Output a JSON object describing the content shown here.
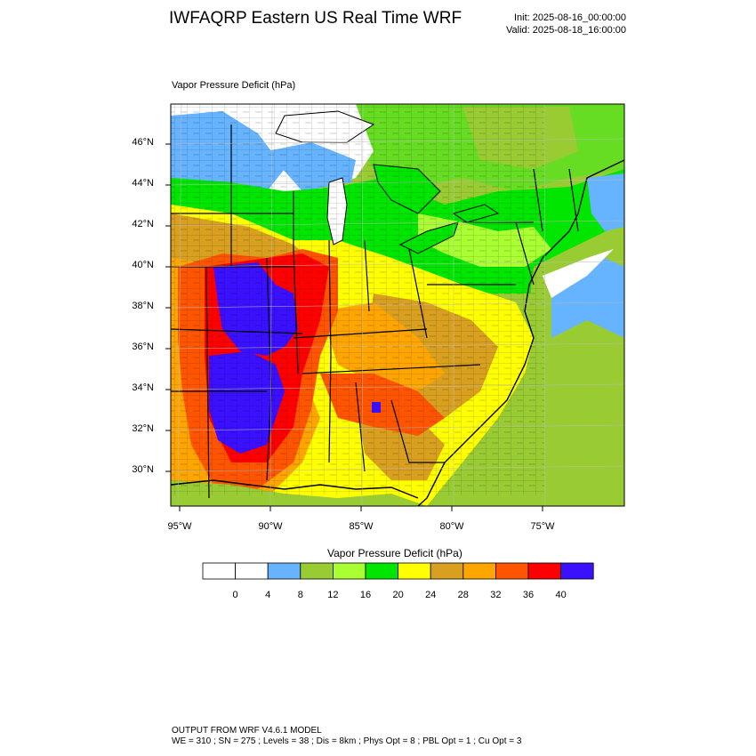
{
  "header": {
    "title": "IWFAQRP Eastern US Real Time WRF",
    "init": "Init: 2025-08-16_00:00:00",
    "valid": "Valid: 2025-08-18_16:00:00"
  },
  "map": {
    "field_label": "Vapor Pressure Deficit   (hPa)",
    "lat_labels": [
      "46°N",
      "44°N",
      "42°N",
      "40°N",
      "38°N",
      "36°N",
      "34°N",
      "32°N",
      "30°N"
    ],
    "lon_labels": [
      "95°W",
      "90°W",
      "85°W",
      "80°W",
      "75°W"
    ]
  },
  "colorbar": {
    "title": "Vapor Pressure Deficit  (hPa)",
    "ticks": [
      "0",
      "4",
      "8",
      "12",
      "16",
      "20",
      "24",
      "28",
      "32",
      "36",
      "40"
    ],
    "colors": [
      "#ffffff",
      "#ffffff",
      "#66b3ff",
      "#99cc33",
      "#aaff33",
      "#00e600",
      "#ffff00",
      "#d9a020",
      "#ffa500",
      "#ff5500",
      "#ff0000",
      "#3a10ff"
    ]
  },
  "footer": {
    "line1": "OUTPUT FROM WRF V4.6.1 MODEL",
    "line2": "WE = 310 ; SN = 275 ; Levels = 38 ; Dis = 8km ; Phys Opt = 8 ; PBL Opt = 1 ; Cu Opt = 3"
  }
}
